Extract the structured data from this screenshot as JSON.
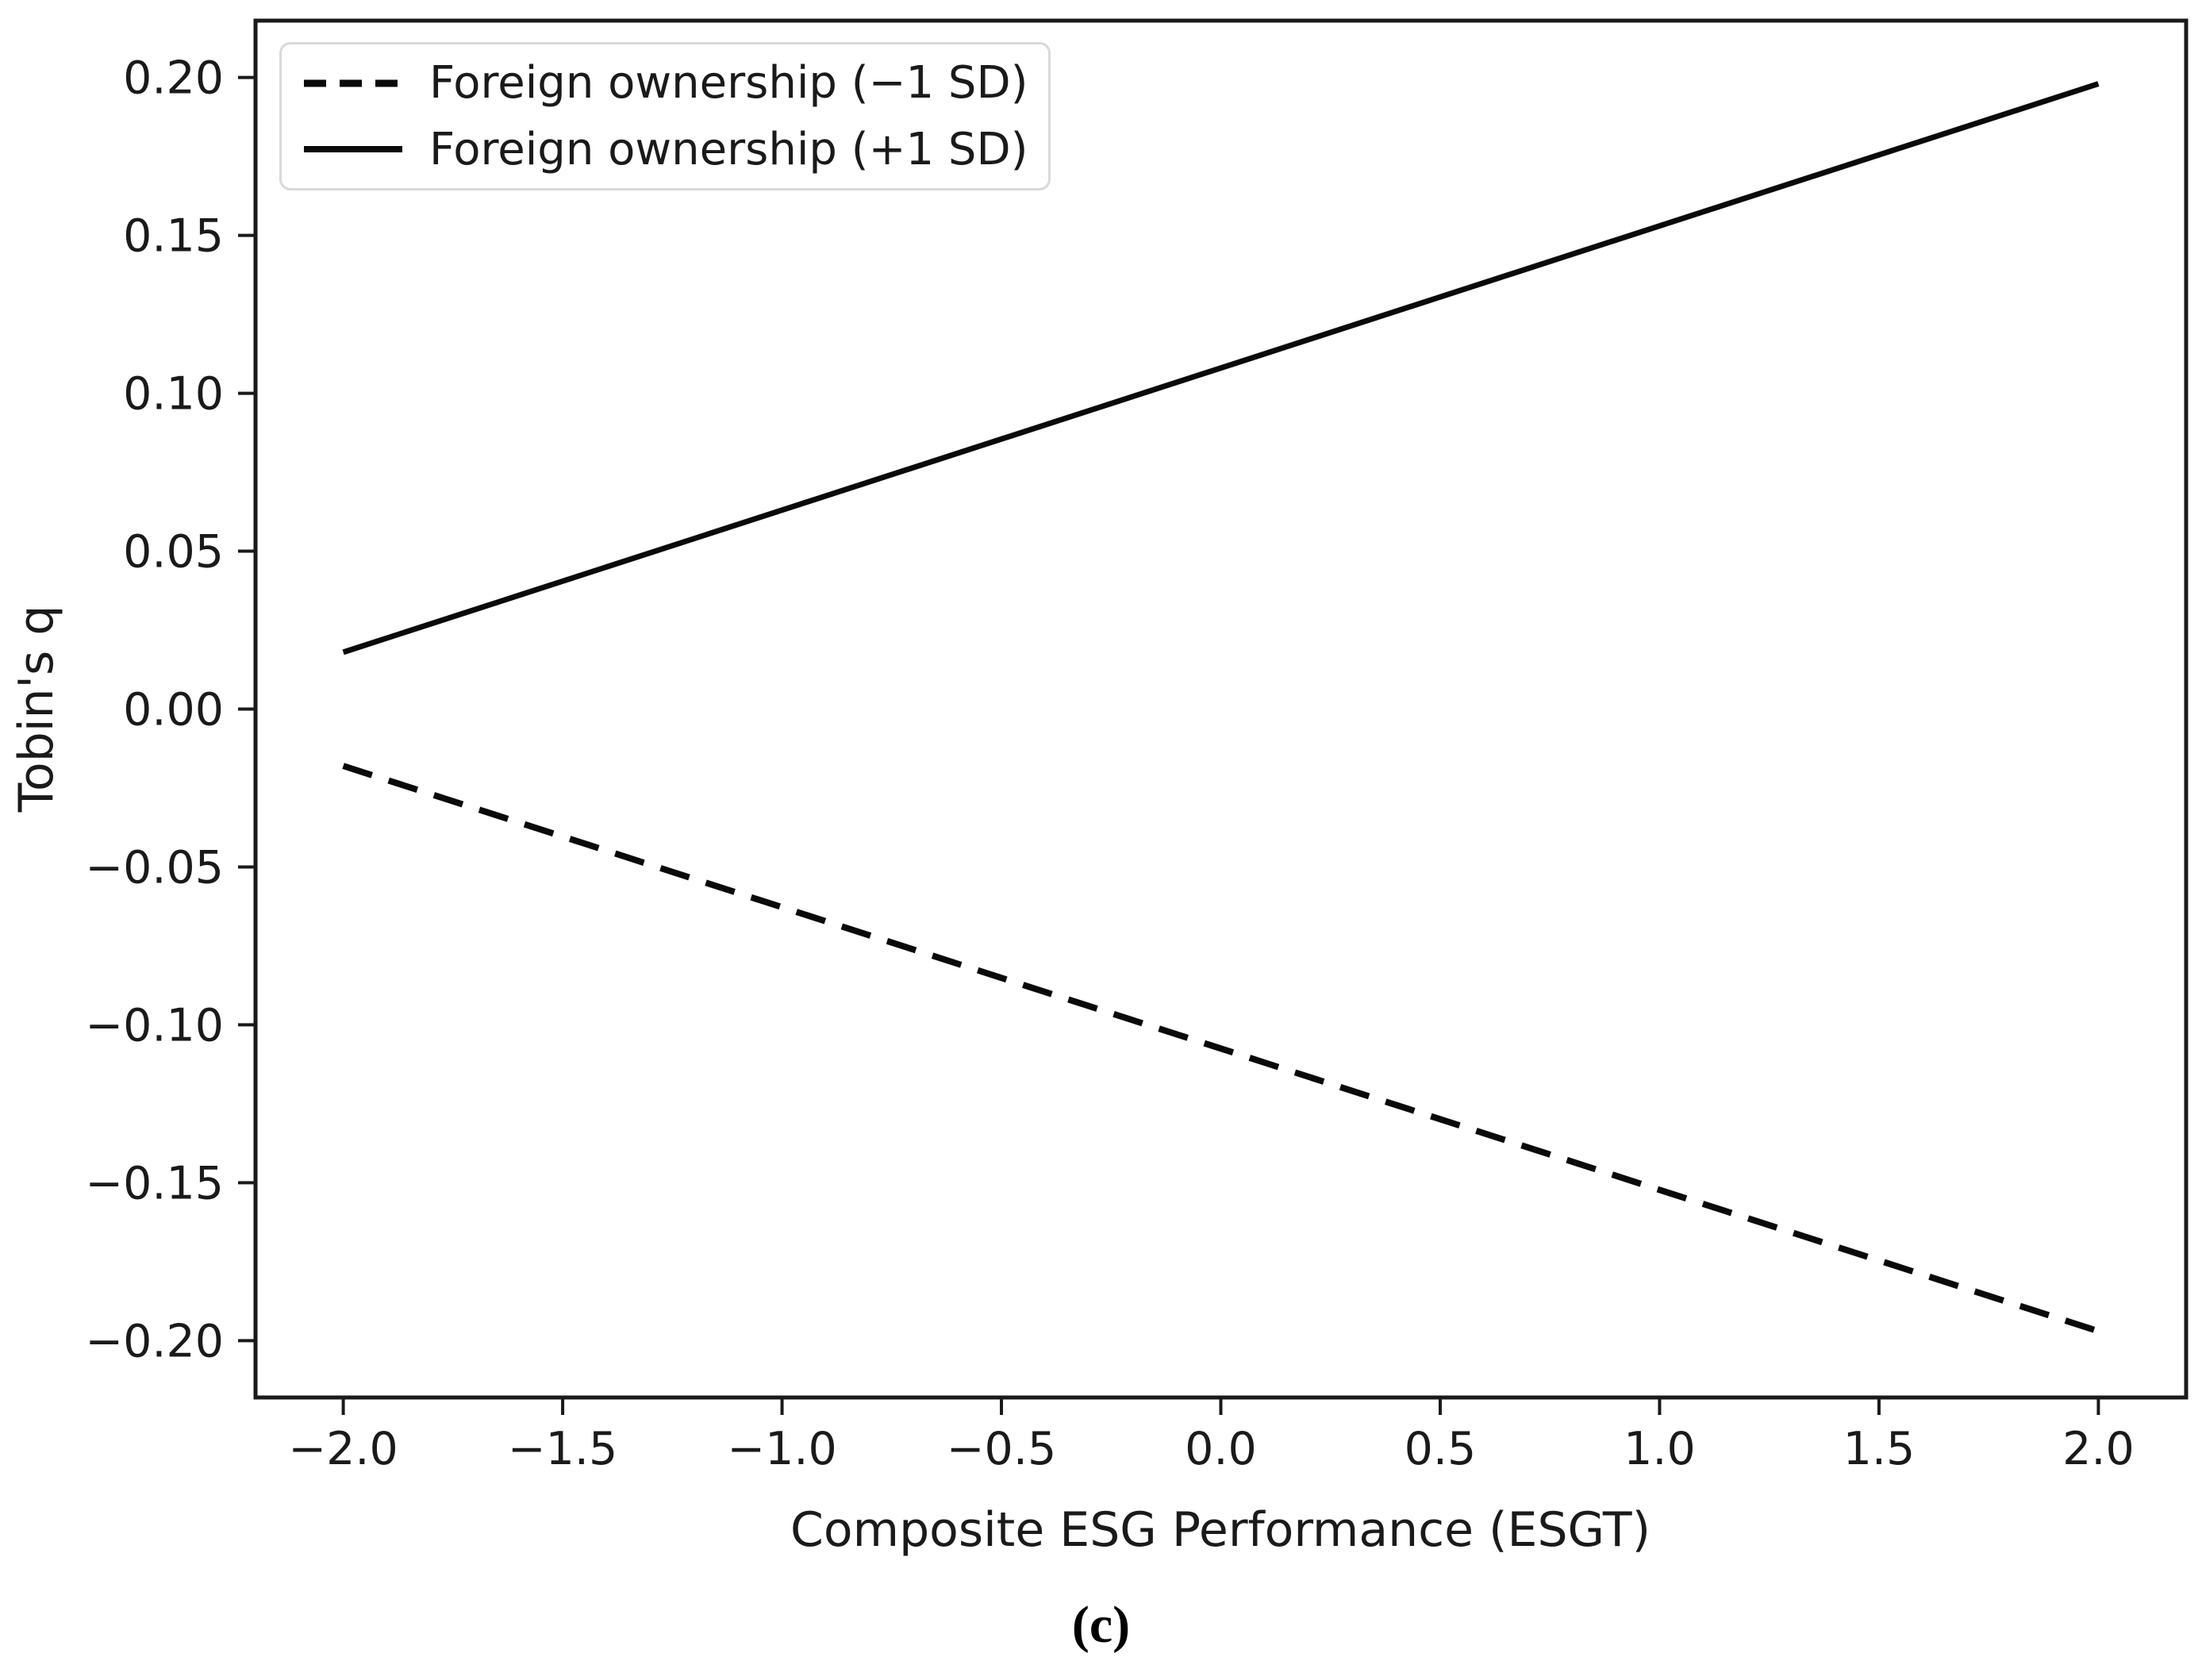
{
  "figure": {
    "caption": "(c)"
  },
  "chart_data": {
    "type": "line",
    "title": "",
    "xlabel": "Composite ESG Performance (ESGT)",
    "ylabel": "Tobin's q",
    "xlim": [
      -2.2,
      2.2
    ],
    "ylim": [
      -0.218,
      0.218
    ],
    "grid": false,
    "background_color": "#ffffff",
    "axis_color": "#1a1a1a",
    "legend_border_color": "#d9d9d9",
    "x_ticks": [
      {
        "v": -2.0,
        "label": "−2.0"
      },
      {
        "v": -1.5,
        "label": "−1.5"
      },
      {
        "v": -1.0,
        "label": "−1.0"
      },
      {
        "v": -0.5,
        "label": "−0.5"
      },
      {
        "v": 0.0,
        "label": "0.0"
      },
      {
        "v": 0.5,
        "label": "0.5"
      },
      {
        "v": 1.0,
        "label": "1.0"
      },
      {
        "v": 1.5,
        "label": "1.5"
      },
      {
        "v": 2.0,
        "label": "2.0"
      }
    ],
    "y_ticks": [
      {
        "v": 0.2,
        "label": "0.20"
      },
      {
        "v": 0.15,
        "label": "0.15"
      },
      {
        "v": 0.1,
        "label": "0.10"
      },
      {
        "v": 0.05,
        "label": "0.05"
      },
      {
        "v": 0.0,
        "label": "0.00"
      },
      {
        "v": -0.05,
        "label": "−0.05"
      },
      {
        "v": -0.1,
        "label": "−0.10"
      },
      {
        "v": -0.15,
        "label": "−0.15"
      },
      {
        "v": -0.2,
        "label": "−0.20"
      }
    ],
    "series": [
      {
        "name": "Foreign ownership (−1 SD)",
        "style": "dashed",
        "color": "#0a0a0a",
        "x": [
          -2.0,
          2.0
        ],
        "y": [
          -0.018,
          -0.197
        ]
      },
      {
        "name": "Foreign ownership (+1 SD)",
        "style": "solid",
        "color": "#0a0a0a",
        "x": [
          -2.0,
          2.0
        ],
        "y": [
          0.018,
          0.198
        ]
      }
    ],
    "legend": {
      "position": "upper left",
      "entries": [
        "Foreign ownership (−1 SD)",
        "Foreign ownership (+1 SD)"
      ]
    }
  }
}
